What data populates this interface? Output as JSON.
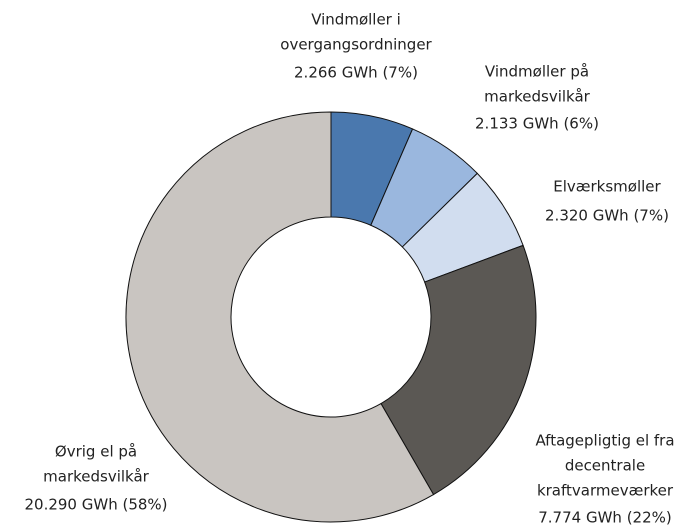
{
  "chart_data": {
    "type": "donut",
    "categories": [
      [
        "Vindmøller i",
        "overgangsordninger"
      ],
      [
        "Vindmøller på",
        "markedsvilkår"
      ],
      [
        "Elværksmøller"
      ],
      [
        "Aftagepligtig el fra",
        "decentrale",
        "kraftvarmeværker"
      ],
      [
        "Øvrig el på",
        "markedsvilkår"
      ]
    ],
    "values": [
      2266,
      2133,
      2320,
      7774,
      20290
    ],
    "value_labels": [
      "2.266 GWh (7%)",
      "2.133 GWh (6%)",
      "2.320 GWh (7%)",
      "7.774 GWh (22%)",
      "20.290 GWh (58%)"
    ],
    "colors": [
      "#4a78ae",
      "#9ab7de",
      "#d1ddef",
      "#5b5854",
      "#c9c5c1"
    ]
  }
}
